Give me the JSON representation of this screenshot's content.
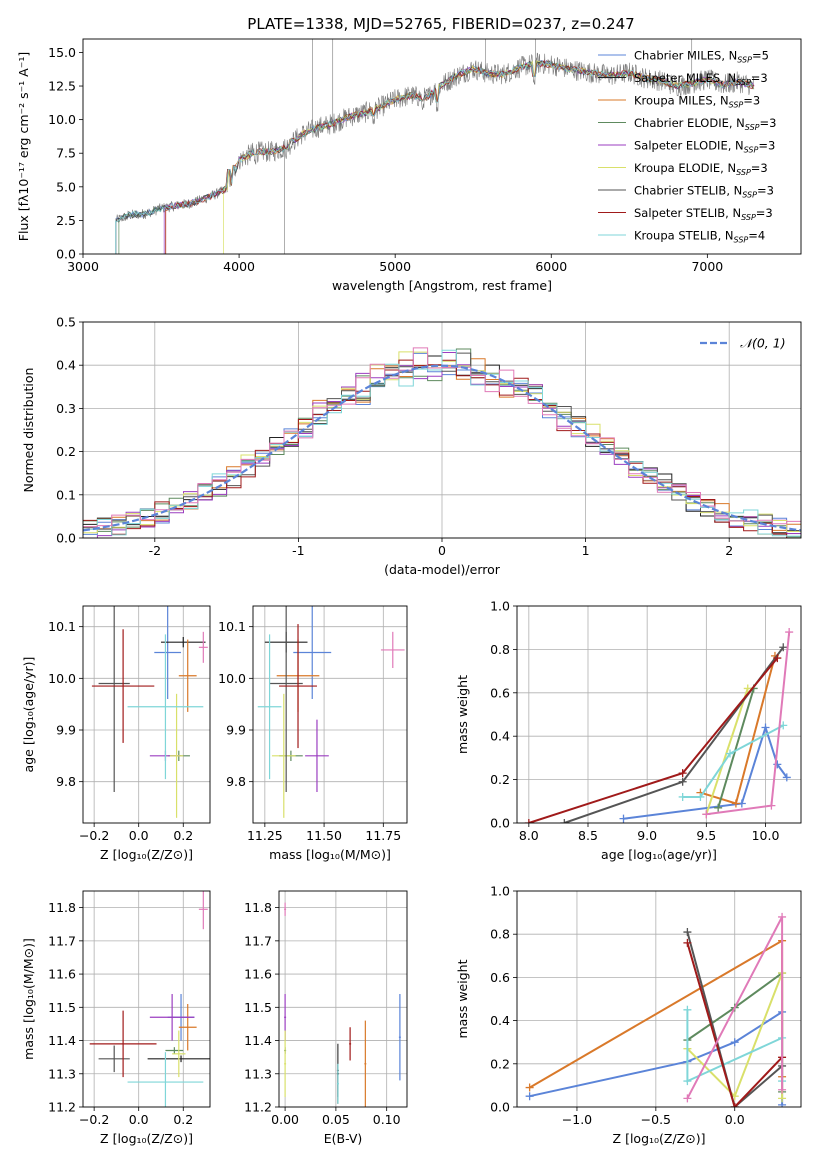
{
  "figure_title": "PLATE=1338, MJD=52765, FIBERID=0237, z=0.247",
  "colors": {
    "Chabrier MILES": "#5b84d8",
    "Salpeter MILES": "#222222",
    "Kroupa MILES": "#d9792a",
    "Chabrier ELODIE": "#5e8a5e",
    "Salpeter ELODIE": "#9b3ec0",
    "Kroupa ELODIE": "#d9e06a",
    "Chabrier STELIB": "#555555",
    "Salpeter STELIB": "#a01a1a",
    "Kroupa STELIB": "#7fd6d8",
    "Pink": "#e07ab8",
    "Gaussian": "#5b84d8",
    "Spectrum": "#7a7a7a",
    "grid": "#b0b0b0"
  },
  "chart_data": [
    {
      "id": "spectrum",
      "type": "line",
      "xlabel": "wavelength [Angstrom, rest frame]",
      "ylabel": "Flux [fλ10⁻¹⁷ erg cm⁻² s⁻¹ A⁻¹]",
      "xlim": [
        3000,
        7600
      ],
      "ylim": [
        0,
        16
      ],
      "xticks": [
        3000,
        4000,
        5000,
        6000,
        7000
      ],
      "yticks": [
        0.0,
        2.5,
        5.0,
        7.5,
        10.0,
        12.5,
        15.0
      ],
      "ytick_labels": [
        "0.0",
        "2.5",
        "5.0",
        "7.5",
        "10.0",
        "12.5",
        "15.0"
      ],
      "grid": false,
      "legend_position": "top-right",
      "legend": [
        {
          "text": "Chabrier MILES, N",
          "sub": "SSP",
          "tail": "=5",
          "color": "Chabrier MILES"
        },
        {
          "text": "Salpeter MILES, N",
          "sub": "SSP",
          "tail": "=3",
          "color": "Salpeter MILES"
        },
        {
          "text": "Kroupa MILES, N",
          "sub": "SSP",
          "tail": "=3",
          "color": "Kroupa MILES"
        },
        {
          "text": "Chabrier ELODIE, N",
          "sub": "SSP",
          "tail": "=3",
          "color": "Chabrier ELODIE"
        },
        {
          "text": "Salpeter ELODIE, N",
          "sub": "SSP",
          "tail": "=3",
          "color": "Salpeter ELODIE"
        },
        {
          "text": "Kroupa ELODIE, N",
          "sub": "SSP",
          "tail": "=3",
          "color": "Kroupa ELODIE"
        },
        {
          "text": "Chabrier STELIB, N",
          "sub": "SSP",
          "tail": "=3",
          "color": "Chabrier STELIB"
        },
        {
          "text": "Salpeter STELIB, N",
          "sub": "SSP",
          "tail": "=3",
          "color": "Salpeter STELIB"
        },
        {
          "text": "Kroupa STELIB, N",
          "sub": "SSP",
          "tail": "=4",
          "color": "Kroupa STELIB"
        }
      ],
      "continuum": [
        [
          3200,
          0
        ],
        [
          3210,
          2.5
        ],
        [
          3300,
          2.9
        ],
        [
          3400,
          3.0
        ],
        [
          3500,
          3.4
        ],
        [
          3600,
          3.6
        ],
        [
          3700,
          3.8
        ],
        [
          3800,
          4.2
        ],
        [
          3900,
          4.7
        ],
        [
          3950,
          5.3
        ],
        [
          4000,
          7.0
        ],
        [
          4100,
          7.6
        ],
        [
          4200,
          7.6
        ],
        [
          4300,
          7.9
        ],
        [
          4400,
          8.9
        ],
        [
          4500,
          9.4
        ],
        [
          4600,
          9.7
        ],
        [
          4700,
          10.2
        ],
        [
          4800,
          10.5
        ],
        [
          4900,
          10.9
        ],
        [
          5000,
          11.5
        ],
        [
          5100,
          11.8
        ],
        [
          5200,
          11.6
        ],
        [
          5300,
          12.6
        ],
        [
          5400,
          13.3
        ],
        [
          5500,
          13.8
        ],
        [
          5600,
          13.4
        ],
        [
          5700,
          13.4
        ],
        [
          5800,
          13.9
        ],
        [
          5900,
          14.2
        ],
        [
          6000,
          14.1
        ],
        [
          6100,
          13.8
        ],
        [
          6200,
          13.6
        ],
        [
          6300,
          13.4
        ],
        [
          6400,
          13.3
        ],
        [
          6500,
          13.5
        ],
        [
          6600,
          13.1
        ],
        [
          6700,
          12.9
        ],
        [
          6800,
          12.5
        ],
        [
          6900,
          12.7
        ],
        [
          7000,
          13.0
        ],
        [
          7100,
          12.6
        ],
        [
          7200,
          12.8
        ],
        [
          7300,
          12.5
        ]
      ],
      "dips": [
        [
          3934,
          5.5
        ],
        [
          3968,
          5.8
        ],
        [
          4102,
          6.6
        ],
        [
          4300,
          7.0
        ],
        [
          4340,
          7.8
        ],
        [
          4861,
          9.5
        ],
        [
          5175,
          10.6
        ],
        [
          5270,
          10.5
        ],
        [
          5890,
          12.4
        ]
      ],
      "spikes": [
        [
          4290,
          0
        ],
        [
          4470,
          16
        ],
        [
          4600,
          16
        ],
        [
          5580,
          16
        ],
        [
          5900,
          16
        ],
        [
          6900,
          16
        ]
      ]
    },
    {
      "id": "residuals",
      "type": "histogram",
      "xlabel": "(data-model)/error",
      "ylabel": "Normed distribution",
      "xlim": [
        -2.5,
        2.5
      ],
      "ylim": [
        0,
        0.5
      ],
      "xticks": [
        -2,
        -1,
        0,
        1,
        2
      ],
      "yticks": [
        0.0,
        0.1,
        0.2,
        0.3,
        0.4,
        0.5
      ],
      "ytick_labels": [
        "0.0",
        "0.1",
        "0.2",
        "0.3",
        "0.4",
        "0.5"
      ],
      "grid": true,
      "legend_position": "top-right",
      "legend": [
        {
          "text": "𝒩(0, 1)",
          "color": "Gaussian",
          "dash": true
        }
      ],
      "bin_width": 0.1
    },
    {
      "id": "age-vs-Z",
      "type": "scatter",
      "xlabel": "Z [log₁₀(Z/Z⊙)]",
      "ylabel": "age  [log₁₀(age/yr)]",
      "xlim": [
        -0.25,
        0.32
      ],
      "ylim": [
        9.72,
        10.14
      ],
      "xticks": [
        -0.2,
        0.0,
        0.2
      ],
      "xtick_labels": [
        "−0.2",
        "0.0",
        "0.2"
      ],
      "yticks": [
        9.8,
        9.9,
        10.0,
        10.1
      ],
      "ytick_labels": [
        "9.8",
        "9.9",
        "10.0",
        "10.1"
      ],
      "grid": true,
      "points": [
        {
          "x": 0.13,
          "y": 10.05,
          "ex": 0.06,
          "ey": 0.09,
          "color": "Chabrier MILES"
        },
        {
          "x": 0.2,
          "y": 10.07,
          "ex": 0.1,
          "ey": 0.01,
          "color": "Salpeter MILES"
        },
        {
          "x": 0.22,
          "y": 10.005,
          "ex": 0.04,
          "ey": 0.07,
          "color": "Kroupa MILES"
        },
        {
          "x": 0.18,
          "y": 9.85,
          "ex": 0.05,
          "ey": 0.01,
          "color": "Chabrier ELODIE"
        },
        {
          "x": 0.12,
          "y": 9.85,
          "ex": 0.07,
          "ey": 0.01,
          "color": "Salpeter ELODIE"
        },
        {
          "x": 0.17,
          "y": 9.85,
          "ex": 0.03,
          "ey": 0.12,
          "color": "Kroupa ELODIE"
        },
        {
          "x": -0.11,
          "y": 9.99,
          "ex": 0.07,
          "ey": 0.21,
          "color": "Chabrier STELIB"
        },
        {
          "x": -0.07,
          "y": 9.985,
          "ex": 0.14,
          "ey": 0.11,
          "color": "Salpeter STELIB"
        },
        {
          "x": 0.12,
          "y": 9.945,
          "ex": 0.17,
          "ey": 0.14,
          "color": "Kroupa STELIB"
        },
        {
          "x": 0.29,
          "y": 10.06,
          "ex": 0.02,
          "ey": 0.03,
          "color": "Pink"
        }
      ]
    },
    {
      "id": "age-vs-mass",
      "type": "scatter",
      "xlabel": "mass [log₁₀(M/M⊙)]",
      "ylabel": "",
      "xlim": [
        11.2,
        11.85
      ],
      "ylim": [
        9.72,
        10.14
      ],
      "xticks": [
        11.25,
        11.5,
        11.75
      ],
      "xtick_labels": [
        "11.25",
        "11.50",
        "11.75"
      ],
      "yticks": [
        9.8,
        9.9,
        10.0,
        10.1
      ],
      "ytick_labels": [
        "9.8",
        "9.9",
        "10.0",
        "10.1"
      ],
      "grid": true,
      "points": [
        {
          "x": 11.45,
          "y": 10.05,
          "ex": 0.08,
          "ey": 0.09,
          "color": "Chabrier MILES"
        },
        {
          "x": 11.34,
          "y": 10.07,
          "ex": 0.09,
          "ey": 0.02,
          "color": "Salpeter MILES"
        },
        {
          "x": 11.39,
          "y": 10.005,
          "ex": 0.09,
          "ey": 0.07,
          "color": "Kroupa MILES"
        },
        {
          "x": 11.36,
          "y": 9.85,
          "ex": 0.05,
          "ey": 0.01,
          "color": "Chabrier ELODIE"
        },
        {
          "x": 11.47,
          "y": 9.85,
          "ex": 0.05,
          "ey": 0.07,
          "color": "Salpeter ELODIE"
        },
        {
          "x": 11.33,
          "y": 9.85,
          "ex": 0.05,
          "ey": 0.12,
          "color": "Kroupa ELODIE"
        },
        {
          "x": 11.34,
          "y": 9.99,
          "ex": 0.07,
          "ey": 0.21,
          "color": "Chabrier STELIB"
        },
        {
          "x": 11.39,
          "y": 9.985,
          "ex": 0.08,
          "ey": 0.12,
          "color": "Salpeter STELIB"
        },
        {
          "x": 11.27,
          "y": 9.945,
          "ex": 0.05,
          "ey": 0.14,
          "color": "Kroupa STELIB"
        },
        {
          "x": 11.79,
          "y": 10.055,
          "ex": 0.05,
          "ey": 0.035,
          "color": "Pink"
        }
      ]
    },
    {
      "id": "massweight-vs-age",
      "type": "line",
      "xlabel": "age  [log₁₀(age/yr)]",
      "ylabel": "mass weight",
      "xlim": [
        7.9,
        10.3
      ],
      "ylim": [
        0,
        1.0
      ],
      "xticks": [
        8.0,
        8.5,
        9.0,
        9.5,
        10.0
      ],
      "xtick_labels": [
        "8.0",
        "8.5",
        "9.0",
        "9.5",
        "10.0"
      ],
      "yticks": [
        0.0,
        0.2,
        0.4,
        0.6,
        0.8,
        1.0
      ],
      "ytick_labels": [
        "0.0",
        "0.2",
        "0.4",
        "0.6",
        "0.8",
        "1.0"
      ],
      "grid": true,
      "series": [
        {
          "color": "Chabrier MILES",
          "x": [
            8.8,
            9.8,
            10.0,
            10.1,
            10.18
          ],
          "y": [
            0.02,
            0.09,
            0.44,
            0.27,
            0.21
          ]
        },
        {
          "color": "Kroupa MILES",
          "x": [
            9.45,
            9.75,
            10.08
          ],
          "y": [
            0.14,
            0.09,
            0.77
          ]
        },
        {
          "color": "Chabrier ELODIE",
          "x": [
            9.6,
            9.9
          ],
          "y": [
            0.07,
            0.62
          ]
        },
        {
          "color": "Kroupa ELODIE",
          "x": [
            9.5,
            9.85
          ],
          "y": [
            0.04,
            0.62
          ]
        },
        {
          "color": "Kroupa STELIB",
          "x": [
            9.3,
            9.45,
            9.7,
            10.15
          ],
          "y": [
            0.12,
            0.12,
            0.32,
            0.45
          ]
        },
        {
          "color": "Chabrier STELIB",
          "x": [
            8.3,
            9.3,
            10.15
          ],
          "y": [
            0.0,
            0.19,
            0.81
          ]
        },
        {
          "color": "Salpeter STELIB",
          "x": [
            8.0,
            9.3,
            10.1
          ],
          "y": [
            0.0,
            0.23,
            0.76
          ]
        },
        {
          "color": "Pink",
          "x": [
            9.5,
            10.05,
            10.2
          ],
          "y": [
            0.04,
            0.08,
            0.88
          ]
        }
      ]
    },
    {
      "id": "mass-vs-Z",
      "type": "scatter",
      "xlabel": "Z [log₁₀(Z/Z⊙)]",
      "ylabel": "mass [log₁₀(M/M⊙)]",
      "xlim": [
        -0.25,
        0.32
      ],
      "ylim": [
        11.2,
        11.85
      ],
      "xticks": [
        -0.2,
        0.0,
        0.2
      ],
      "xtick_labels": [
        "−0.2",
        "0.0",
        "0.2"
      ],
      "yticks": [
        11.2,
        11.3,
        11.4,
        11.5,
        11.6,
        11.7,
        11.8
      ],
      "ytick_labels": [
        "11.2",
        "11.3",
        "11.4",
        "11.5",
        "11.6",
        "11.7",
        "11.8"
      ],
      "grid": true,
      "points": [
        {
          "x": 0.19,
          "y": 11.47,
          "ex": 0.06,
          "ey": 0.07,
          "color": "Chabrier MILES"
        },
        {
          "x": 0.19,
          "y": 11.345,
          "ex": 0.15,
          "ey": 0.01,
          "color": "Salpeter MILES"
        },
        {
          "x": 0.22,
          "y": 11.44,
          "ex": 0.04,
          "ey": 0.07,
          "color": "Kroupa MILES"
        },
        {
          "x": 0.16,
          "y": 11.37,
          "ex": 0.04,
          "ey": 0.01,
          "color": "Chabrier ELODIE"
        },
        {
          "x": 0.15,
          "y": 11.47,
          "ex": 0.1,
          "ey": 0.07,
          "color": "Salpeter ELODIE"
        },
        {
          "x": 0.18,
          "y": 11.36,
          "ex": 0.03,
          "ey": 0.07,
          "color": "Kroupa ELODIE"
        },
        {
          "x": -0.11,
          "y": 11.345,
          "ex": 0.07,
          "ey": 0.04,
          "color": "Chabrier STELIB"
        },
        {
          "x": -0.07,
          "y": 11.39,
          "ex": 0.15,
          "ey": 0.1,
          "color": "Salpeter STELIB"
        },
        {
          "x": 0.12,
          "y": 11.275,
          "ex": 0.17,
          "ey": 0.09,
          "color": "Kroupa STELIB"
        },
        {
          "x": 0.29,
          "y": 11.795,
          "ex": 0.02,
          "ey": 0.06,
          "color": "Pink"
        }
      ]
    },
    {
      "id": "mass-vs-ebv",
      "type": "scatter",
      "xlabel": "E(B-V)",
      "ylabel": "",
      "xlim": [
        -0.006,
        0.12
      ],
      "ylim": [
        11.2,
        11.85
      ],
      "xticks": [
        0.0,
        0.05,
        0.1
      ],
      "xtick_labels": [
        "0.00",
        "0.05",
        "0.10"
      ],
      "yticks": [
        11.2,
        11.3,
        11.4,
        11.5,
        11.6,
        11.7,
        11.8
      ],
      "ytick_labels": [
        "11.2",
        "11.3",
        "11.4",
        "11.5",
        "11.6",
        "11.7",
        "11.8"
      ],
      "grid": true,
      "points": [
        {
          "x": 0.113,
          "y": 11.41,
          "ex": 0,
          "ey": 0.13,
          "color": "Chabrier MILES"
        },
        {
          "x": 0.052,
          "y": 11.3,
          "ex": 0,
          "ey": 0.09,
          "color": "Salpeter MILES"
        },
        {
          "x": 0.079,
          "y": 11.33,
          "ex": 0,
          "ey": 0.13,
          "color": "Kroupa MILES"
        },
        {
          "x": 0.0,
          "y": 11.37,
          "ex": 0,
          "ey": 0.01,
          "color": "Chabrier ELODIE"
        },
        {
          "x": 0.0,
          "y": 11.47,
          "ex": 0,
          "ey": 0.07,
          "color": "Salpeter ELODIE"
        },
        {
          "x": 0.0,
          "y": 11.33,
          "ex": 0,
          "ey": 0.1,
          "color": "Kroupa ELODIE"
        },
        {
          "x": 0.052,
          "y": 11.31,
          "ex": 0,
          "ey": 0.08,
          "color": "Chabrier STELIB"
        },
        {
          "x": 0.064,
          "y": 11.39,
          "ex": 0,
          "ey": 0.05,
          "color": "Salpeter STELIB"
        },
        {
          "x": 0.052,
          "y": 11.27,
          "ex": 0,
          "ey": 0.06,
          "color": "Kroupa STELIB"
        },
        {
          "x": 0.0,
          "y": 11.795,
          "ex": 0,
          "ey": 0.02,
          "color": "Pink"
        }
      ]
    },
    {
      "id": "massweight-vs-Z",
      "type": "line",
      "xlabel": "Z [log₁₀(Z/Z⊙)]",
      "ylabel": "mass weight",
      "xlim": [
        -1.38,
        0.42
      ],
      "ylim": [
        0,
        1.0
      ],
      "xticks": [
        -1.0,
        -0.5,
        0.0
      ],
      "xtick_labels": [
        "−1.0",
        "−0.5",
        "0.0"
      ],
      "yticks": [
        0.0,
        0.2,
        0.4,
        0.6,
        0.8,
        1.0
      ],
      "ytick_labels": [
        "0.0",
        "0.2",
        "0.4",
        "0.6",
        "0.8",
        "1.0"
      ],
      "grid": true,
      "series": [
        {
          "color": "Chabrier MILES",
          "x": [
            -1.3,
            -0.3,
            0.0,
            0.3,
            0.3
          ],
          "y": [
            0.05,
            0.21,
            0.3,
            0.44,
            0.01
          ]
        },
        {
          "color": "Kroupa MILES",
          "x": [
            -1.3,
            0.3,
            0.3
          ],
          "y": [
            0.09,
            0.77,
            0.14
          ]
        },
        {
          "color": "Chabrier ELODIE",
          "x": [
            -0.3,
            0.0,
            0.3,
            0.3
          ],
          "y": [
            0.31,
            0.46,
            0.62,
            0.07
          ]
        },
        {
          "color": "Kroupa ELODIE",
          "x": [
            -0.3,
            0.0,
            0.3,
            0.3
          ],
          "y": [
            0.27,
            0.05,
            0.62,
            0.04
          ]
        },
        {
          "color": "Kroupa STELIB",
          "x": [
            -0.3,
            -0.3,
            0.3,
            0.3
          ],
          "y": [
            0.45,
            0.12,
            0.32,
            0.12
          ]
        },
        {
          "color": "Chabrier STELIB",
          "x": [
            -0.3,
            0.0,
            0.3
          ],
          "y": [
            0.81,
            0.0,
            0.19
          ]
        },
        {
          "color": "Salpeter STELIB",
          "x": [
            -0.3,
            0.0,
            0.3
          ],
          "y": [
            0.76,
            0.0,
            0.23
          ]
        },
        {
          "color": "Pink",
          "x": [
            -0.3,
            0.3,
            0.3
          ],
          "y": [
            0.04,
            0.88,
            0.08
          ]
        }
      ]
    }
  ]
}
